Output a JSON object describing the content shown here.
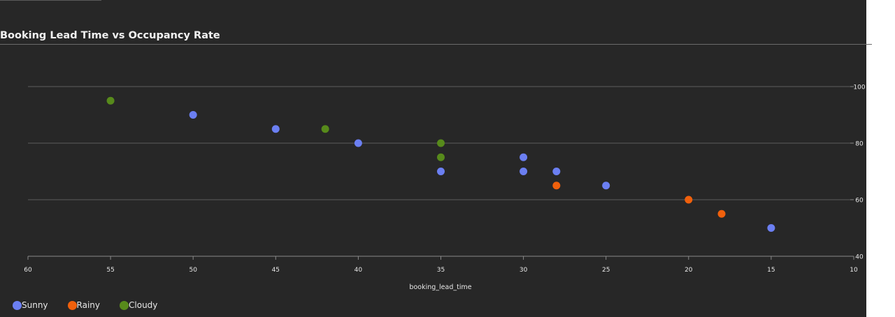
{
  "chart_data": {
    "type": "scatter",
    "title": "Booking Lead Time vs Occupancy Rate",
    "xlabel": "booking_lead_time",
    "ylabel": "",
    "xlim": [
      60,
      10
    ],
    "ylim": [
      40,
      100
    ],
    "x_reversed": true,
    "x_ticks": [
      60,
      55,
      50,
      45,
      40,
      35,
      30,
      25,
      20,
      15,
      10
    ],
    "y_ticks": [
      40,
      60,
      80,
      100
    ],
    "y_axis_side": "right",
    "grid": "horizontal",
    "legend_position": "bottom-left",
    "series": [
      {
        "name": "Sunny",
        "color": "#6b7ff2",
        "points": [
          {
            "x": 50,
            "y": 90
          },
          {
            "x": 45,
            "y": 85
          },
          {
            "x": 40,
            "y": 80
          },
          {
            "x": 35,
            "y": 70
          },
          {
            "x": 30,
            "y": 75
          },
          {
            "x": 30,
            "y": 70
          },
          {
            "x": 28,
            "y": 70
          },
          {
            "x": 25,
            "y": 65
          },
          {
            "x": 15,
            "y": 50
          }
        ]
      },
      {
        "name": "Rainy",
        "color": "#f0600c",
        "points": [
          {
            "x": 28,
            "y": 65
          },
          {
            "x": 20,
            "y": 60
          },
          {
            "x": 18,
            "y": 55
          }
        ]
      },
      {
        "name": "Cloudy",
        "color": "#578a1b",
        "points": [
          {
            "x": 55,
            "y": 95
          },
          {
            "x": 42,
            "y": 85
          },
          {
            "x": 35,
            "y": 80
          },
          {
            "x": 35,
            "y": 75
          }
        ]
      }
    ]
  },
  "colors": {
    "background": "#272727",
    "grid": "#5e5e5e",
    "axis": "#8a8a8a",
    "text": "#e8e8e8"
  }
}
